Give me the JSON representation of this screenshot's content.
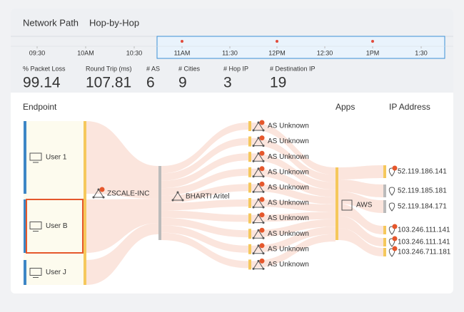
{
  "tabs": [
    "Network Path",
    "Hop-by-Hop"
  ],
  "timeline": {
    "labels": [
      "09:30",
      "10AM",
      "10:30",
      "11AM",
      "11:30",
      "12PM",
      "12:30",
      "1PM",
      "1:30"
    ]
  },
  "metrics": [
    {
      "label": "% Packet Loss",
      "value": 99.14
    },
    {
      "label": "Round Trip (ms)",
      "value": 107.81
    },
    {
      "label": "# AS",
      "value": 6
    },
    {
      "label": "# Cities",
      "value": 9
    },
    {
      "label": "# Hop IP",
      "value": 3
    },
    {
      "label": "# Destination IP",
      "value": 19
    }
  ],
  "columns": {
    "endpoint": "Endpoint",
    "apps": "Apps",
    "ip": "IP Address"
  },
  "endpoints": [
    "User 1",
    "User B",
    "User J"
  ],
  "hops": [
    "ZSCALE-INC",
    "BHARTI Aritel"
  ],
  "as_nodes": [
    "AS Unknown",
    "AS Unknown",
    "AS Unknown",
    "AS Unknown",
    "AS Unknown",
    "AS Unknown",
    "AS Unknown",
    "AS Unknown",
    "AS Unknown",
    "AS Unknown"
  ],
  "apps": [
    "AWS"
  ],
  "ips": [
    {
      "address": "52.119.186.141",
      "alert": true
    },
    {
      "address": "52.119.185.181",
      "alert": false
    },
    {
      "address": "52.119.184.171",
      "alert": false
    },
    {
      "address": "103.246.111.141",
      "alert": true
    },
    {
      "address": "103.246.111.141",
      "alert": true
    },
    {
      "address": "103.246.711.181",
      "alert": true
    }
  ]
}
